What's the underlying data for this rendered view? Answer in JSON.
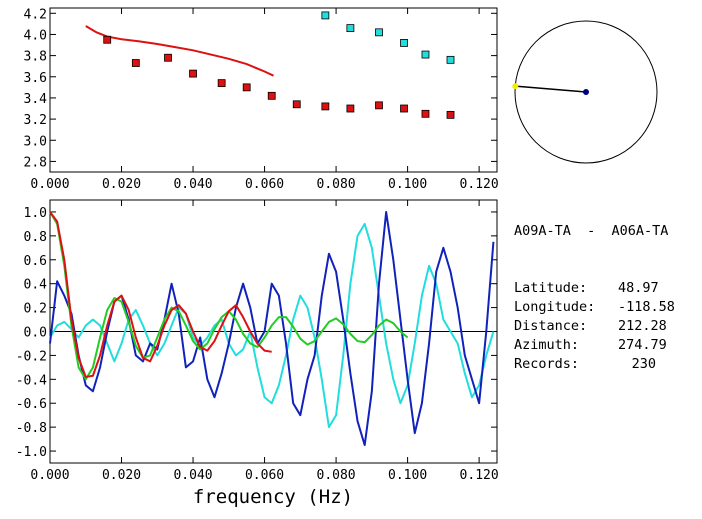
{
  "station_pair": "A09A-TA  -  A06A-TA",
  "info": [
    {
      "label": "Latitude:",
      "value": "48.97"
    },
    {
      "label": "Longitude:",
      "value": "-118.58"
    },
    {
      "label": "Distance:",
      "value": "212.28"
    },
    {
      "label": "Azimuth:",
      "value": "274.79"
    },
    {
      "label": "Records:",
      "value": "230"
    }
  ],
  "colors": {
    "red": "#dd1111",
    "cyan": "#22dddd",
    "blue": "#1122bb",
    "green": "#22cc22",
    "yellow": "#eeee00",
    "navy": "#000088"
  },
  "chart_data": [
    {
      "type": "scatter",
      "title": "",
      "xlabel": "",
      "ylabel": "",
      "xlim": [
        0.0,
        0.125
      ],
      "ylim": [
        2.7,
        4.25
      ],
      "xticks": [
        "0.000",
        "0.020",
        "0.040",
        "0.060",
        "0.080",
        "0.100",
        "0.120"
      ],
      "yticks": [
        "2.8",
        "3.0",
        "3.2",
        "3.4",
        "3.6",
        "3.8",
        "4.0",
        "4.2"
      ],
      "series": [
        {
          "kind": "line",
          "color": "red",
          "x": [
            0.01,
            0.013,
            0.016,
            0.02,
            0.025,
            0.03,
            0.035,
            0.04,
            0.045,
            0.05,
            0.055,
            0.06,
            0.0625
          ],
          "y": [
            4.08,
            4.02,
            3.98,
            3.955,
            3.935,
            3.91,
            3.88,
            3.85,
            3.81,
            3.77,
            3.72,
            3.65,
            3.61
          ]
        },
        {
          "kind": "markers",
          "color": "red",
          "x": [
            0.016,
            0.024,
            0.033,
            0.04,
            0.048,
            0.055,
            0.062,
            0.069,
            0.077,
            0.084,
            0.092,
            0.099,
            0.105,
            0.112
          ],
          "y": [
            3.95,
            3.73,
            3.78,
            3.63,
            3.54,
            3.5,
            3.42,
            3.34,
            3.32,
            3.3,
            3.33,
            3.3,
            3.25,
            3.24
          ]
        },
        {
          "kind": "markers",
          "color": "cyan",
          "x": [
            0.077,
            0.084,
            0.092,
            0.099,
            0.105,
            0.112
          ],
          "y": [
            4.18,
            4.06,
            4.02,
            3.92,
            3.81,
            3.76
          ]
        }
      ]
    },
    {
      "type": "line",
      "title": "",
      "xlabel": "frequency (Hz)",
      "ylabel": "",
      "xlim": [
        0.0,
        0.125
      ],
      "ylim": [
        -1.1,
        1.1
      ],
      "xticks": [
        "0.000",
        "0.020",
        "0.040",
        "0.060",
        "0.080",
        "0.100",
        "0.120"
      ],
      "yticks": [
        "-1.0",
        "-0.8",
        "-0.6",
        "-0.4",
        "-0.2",
        "0.0",
        "0.2",
        "0.4",
        "0.6",
        "0.8",
        "1.0"
      ],
      "series": [
        {
          "color": "cyan",
          "x": [
            0.0,
            0.002,
            0.004,
            0.006,
            0.008,
            0.01,
            0.012,
            0.014,
            0.016,
            0.018,
            0.02,
            0.022,
            0.024,
            0.026,
            0.028,
            0.03,
            0.032,
            0.034,
            0.036,
            0.038,
            0.04,
            0.042,
            0.044,
            0.046,
            0.048,
            0.05,
            0.052,
            0.054,
            0.056,
            0.058,
            0.06,
            0.062,
            0.064,
            0.066,
            0.068,
            0.07,
            0.072,
            0.074,
            0.076,
            0.078,
            0.08,
            0.082,
            0.084,
            0.086,
            0.088,
            0.09,
            0.092,
            0.094,
            0.096,
            0.098,
            0.1,
            0.102,
            0.104,
            0.106,
            0.108,
            0.11,
            0.112,
            0.114,
            0.116,
            0.118,
            0.12,
            0.122,
            0.124
          ],
          "y": [
            -0.05,
            0.05,
            0.08,
            0.02,
            -0.05,
            0.05,
            0.1,
            0.05,
            -0.1,
            -0.25,
            -0.1,
            0.1,
            0.18,
            0.05,
            -0.1,
            -0.2,
            -0.1,
            0.05,
            0.2,
            0.15,
            -0.05,
            -0.12,
            -0.05,
            0.05,
            0.1,
            -0.1,
            -0.2,
            -0.15,
            0.0,
            -0.3,
            -0.55,
            -0.6,
            -0.45,
            -0.2,
            0.1,
            0.3,
            0.2,
            -0.05,
            -0.4,
            -0.8,
            -0.7,
            -0.2,
            0.4,
            0.8,
            0.9,
            0.7,
            0.3,
            -0.1,
            -0.4,
            -0.6,
            -0.45,
            -0.1,
            0.3,
            0.55,
            0.4,
            0.1,
            0.0,
            -0.1,
            -0.35,
            -0.55,
            -0.45,
            -0.2,
            0.0
          ]
        },
        {
          "color": "blue",
          "x": [
            0.0,
            0.002,
            0.004,
            0.006,
            0.008,
            0.01,
            0.012,
            0.014,
            0.016,
            0.018,
            0.02,
            0.022,
            0.024,
            0.026,
            0.028,
            0.03,
            0.032,
            0.034,
            0.036,
            0.038,
            0.04,
            0.042,
            0.044,
            0.046,
            0.048,
            0.05,
            0.052,
            0.054,
            0.056,
            0.058,
            0.06,
            0.062,
            0.064,
            0.066,
            0.068,
            0.07,
            0.072,
            0.074,
            0.076,
            0.078,
            0.08,
            0.082,
            0.084,
            0.086,
            0.088,
            0.09,
            0.092,
            0.094,
            0.096,
            0.098,
            0.1,
            0.102,
            0.104,
            0.106,
            0.108,
            0.11,
            0.112,
            0.114,
            0.116,
            0.118,
            0.12,
            0.122,
            0.124
          ],
          "y": [
            -0.1,
            0.42,
            0.3,
            0.15,
            -0.2,
            -0.45,
            -0.5,
            -0.3,
            0.0,
            0.25,
            0.3,
            0.1,
            -0.2,
            -0.25,
            -0.1,
            -0.15,
            0.1,
            0.4,
            0.15,
            -0.3,
            -0.25,
            -0.05,
            -0.4,
            -0.55,
            -0.35,
            -0.1,
            0.2,
            0.4,
            0.2,
            -0.1,
            0.0,
            0.4,
            0.3,
            -0.1,
            -0.6,
            -0.7,
            -0.4,
            -0.2,
            0.3,
            0.65,
            0.5,
            0.1,
            -0.35,
            -0.75,
            -0.95,
            -0.5,
            0.4,
            1.0,
            0.6,
            0.1,
            -0.4,
            -0.85,
            -0.6,
            -0.1,
            0.5,
            0.7,
            0.5,
            0.2,
            -0.2,
            -0.4,
            -0.6,
            0.0,
            0.75
          ]
        },
        {
          "color": "green",
          "x": [
            0.0,
            0.002,
            0.004,
            0.006,
            0.008,
            0.01,
            0.012,
            0.014,
            0.016,
            0.018,
            0.02,
            0.022,
            0.024,
            0.026,
            0.028,
            0.03,
            0.032,
            0.034,
            0.036,
            0.038,
            0.04,
            0.042,
            0.044,
            0.046,
            0.048,
            0.05,
            0.052,
            0.054,
            0.056,
            0.058,
            0.06,
            0.062,
            0.064,
            0.066,
            0.068,
            0.07,
            0.072,
            0.074,
            0.076,
            0.078,
            0.08,
            0.082,
            0.084,
            0.086,
            0.088,
            0.09,
            0.092,
            0.094,
            0.096,
            0.098,
            0.1
          ],
          "y": [
            1.0,
            0.9,
            0.55,
            0.05,
            -0.3,
            -0.4,
            -0.3,
            -0.05,
            0.18,
            0.28,
            0.25,
            0.08,
            -0.12,
            -0.22,
            -0.2,
            -0.05,
            0.1,
            0.2,
            0.17,
            0.05,
            -0.08,
            -0.15,
            -0.1,
            0.02,
            0.12,
            0.17,
            0.1,
            -0.02,
            -0.1,
            -0.13,
            -0.05,
            0.05,
            0.12,
            0.12,
            0.04,
            -0.06,
            -0.11,
            -0.08,
            0.0,
            0.08,
            0.11,
            0.06,
            -0.02,
            -0.08,
            -0.09,
            -0.03,
            0.05,
            0.1,
            0.07,
            0.0,
            -0.05
          ]
        },
        {
          "color": "red",
          "x": [
            0.0,
            0.002,
            0.004,
            0.006,
            0.008,
            0.01,
            0.012,
            0.014,
            0.016,
            0.018,
            0.02,
            0.022,
            0.024,
            0.026,
            0.028,
            0.03,
            0.032,
            0.034,
            0.036,
            0.038,
            0.04,
            0.042,
            0.044,
            0.046,
            0.048,
            0.05,
            0.052,
            0.054,
            0.056,
            0.058,
            0.06,
            0.062
          ],
          "y": [
            1.0,
            0.92,
            0.6,
            0.1,
            -0.22,
            -0.38,
            -0.37,
            -0.2,
            0.05,
            0.25,
            0.3,
            0.18,
            -0.05,
            -0.22,
            -0.25,
            -0.12,
            0.05,
            0.18,
            0.22,
            0.15,
            0.0,
            -0.13,
            -0.16,
            -0.08,
            0.05,
            0.17,
            0.22,
            0.12,
            0.0,
            -0.1,
            -0.16,
            -0.17
          ]
        }
      ]
    },
    {
      "type": "scatter",
      "title": "",
      "kind": "azimuth-circle",
      "azimuth": 274.79,
      "markers": [
        {
          "name": "center",
          "color": "navy",
          "x": 0,
          "y": 0
        },
        {
          "name": "edge",
          "color": "yellow",
          "angle": 274.79
        }
      ]
    }
  ]
}
